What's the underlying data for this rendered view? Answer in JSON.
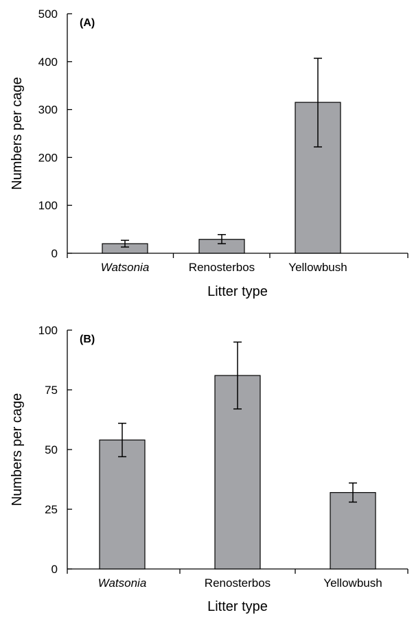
{
  "chart_data": [
    {
      "type": "bar",
      "panel_label": "(A)",
      "xlabel": "Litter type",
      "ylabel": "Numbers per cage",
      "categories": [
        "Watsonia",
        "Renosterbos",
        "Yellowbush"
      ],
      "italic_categories": [
        "Watsonia"
      ],
      "values": [
        20,
        29,
        315
      ],
      "error_low": [
        13,
        20,
        222
      ],
      "error_high": [
        27,
        39,
        407
      ],
      "ylim": [
        0,
        500
      ],
      "yticks": [
        "0",
        "100",
        "200",
        "300",
        "400",
        "500"
      ],
      "grid": false,
      "bar_color": "#a3a4a8"
    },
    {
      "type": "bar",
      "panel_label": "(B)",
      "xlabel": "Litter type",
      "ylabel": "Numbers per cage",
      "categories": [
        "Watsonia",
        "Renosterbos",
        "Yellowbush"
      ],
      "italic_categories": [
        "Watsonia"
      ],
      "values": [
        54,
        81,
        32
      ],
      "error_low": [
        47,
        67,
        28
      ],
      "error_high": [
        61,
        95,
        36
      ],
      "ylim": [
        0,
        100
      ],
      "yticks": [
        "0",
        "25",
        "50",
        "75",
        "100"
      ],
      "grid": false,
      "bar_color": "#a3a4a8"
    }
  ]
}
